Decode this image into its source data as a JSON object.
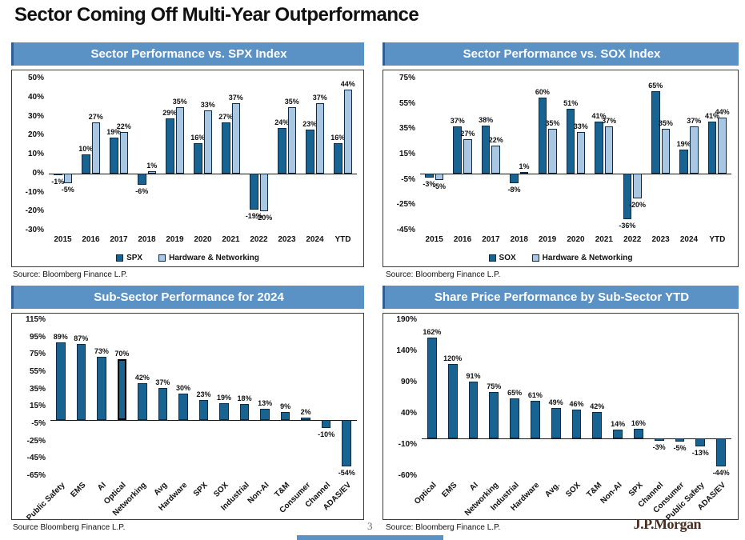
{
  "page": {
    "title": "Sector Coming Off Multi-Year Outperformance",
    "page_number": "3",
    "brand": "J.P.Morgan"
  },
  "colors": {
    "header_bg": "#5b92c6",
    "dark_bar": "#176391",
    "light_bar": "#a9c7e3",
    "bar_border": "#0d2b47",
    "brand_text": "#4a2d1f"
  },
  "chart_data": [
    {
      "type": "bar",
      "title": "Sector Performance vs. SPX Index",
      "source": "Source: Bloomberg Finance L.P.",
      "categories": [
        "2015",
        "2016",
        "2017",
        "2018",
        "2019",
        "2020",
        "2021",
        "2022",
        "2023",
        "2024",
        "YTD"
      ],
      "series": [
        {
          "name": "SPX",
          "values": [
            -1,
            10,
            19,
            -6,
            29,
            16,
            27,
            -19,
            24,
            23,
            16
          ]
        },
        {
          "name": "Hardware & Networking",
          "values": [
            -5,
            27,
            22,
            1,
            35,
            33,
            37,
            -20,
            35,
            37,
            44
          ]
        }
      ],
      "ylim": [
        -30,
        50
      ],
      "yticks": [
        50,
        40,
        30,
        20,
        10,
        0,
        -10,
        -20,
        -30
      ],
      "grid": false,
      "legend_position": "bottom",
      "rotated_labels": false
    },
    {
      "type": "bar",
      "title": "Sector Performance vs. SOX Index",
      "source": "Source: Bloomberg Finance L.P.",
      "categories": [
        "2015",
        "2016",
        "2017",
        "2018",
        "2019",
        "2020",
        "2021",
        "2022",
        "2023",
        "2024",
        "YTD"
      ],
      "series": [
        {
          "name": "SOX",
          "values": [
            -3,
            37,
            38,
            -8,
            60,
            51,
            41,
            -36,
            65,
            19,
            41
          ]
        },
        {
          "name": "Hardware & Networking",
          "values": [
            -5,
            27,
            22,
            1,
            35,
            33,
            37,
            -20,
            35,
            37,
            44
          ]
        }
      ],
      "ylim": [
        -45,
        75
      ],
      "yticks": [
        75,
        55,
        35,
        15,
        -5,
        -25,
        -45
      ],
      "grid": false,
      "legend_position": "bottom",
      "rotated_labels": false
    },
    {
      "type": "bar",
      "title": "Sub-Sector Performance for 2024",
      "source": "Source Bloomberg Finance L.P.",
      "categories": [
        "Public Safety",
        "EMS",
        "AI",
        "Optical",
        "Networking",
        "Avg",
        "Hardware",
        "SPX",
        "SOX",
        "Industrial",
        "Non-AI",
        "T&M",
        "Consumer",
        "Channel",
        "ADAS/EV"
      ],
      "values": [
        89,
        87,
        73,
        70,
        42,
        37,
        30,
        23,
        19,
        18,
        13,
        9,
        2,
        -10,
        -54
      ],
      "ylim": [
        -65,
        115
      ],
      "yticks": [
        115,
        95,
        75,
        55,
        35,
        15,
        -5,
        -25,
        -45,
        -65
      ],
      "grid": false,
      "highlight_index": 3,
      "rotated_labels": true
    },
    {
      "type": "bar",
      "title": "Share Price Performance by Sub-Sector YTD",
      "source": "Source: Bloomberg Finance L.P.",
      "categories": [
        "Optical",
        "EMS",
        "AI",
        "Networking",
        "Industrial",
        "Hardware",
        "Avg.",
        "SOX",
        "T&M",
        "Non-AI",
        "SPX",
        "Channel",
        "Consumer",
        "Public Safety",
        "ADAS/EV"
      ],
      "values": [
        162,
        120,
        91,
        75,
        65,
        61,
        49,
        46,
        42,
        14,
        16,
        -3,
        -5,
        -13,
        -44
      ],
      "ylim": [
        -60,
        190
      ],
      "yticks": [
        190,
        140,
        90,
        40,
        -10,
        -60
      ],
      "grid": false,
      "rotated_labels": true
    }
  ]
}
